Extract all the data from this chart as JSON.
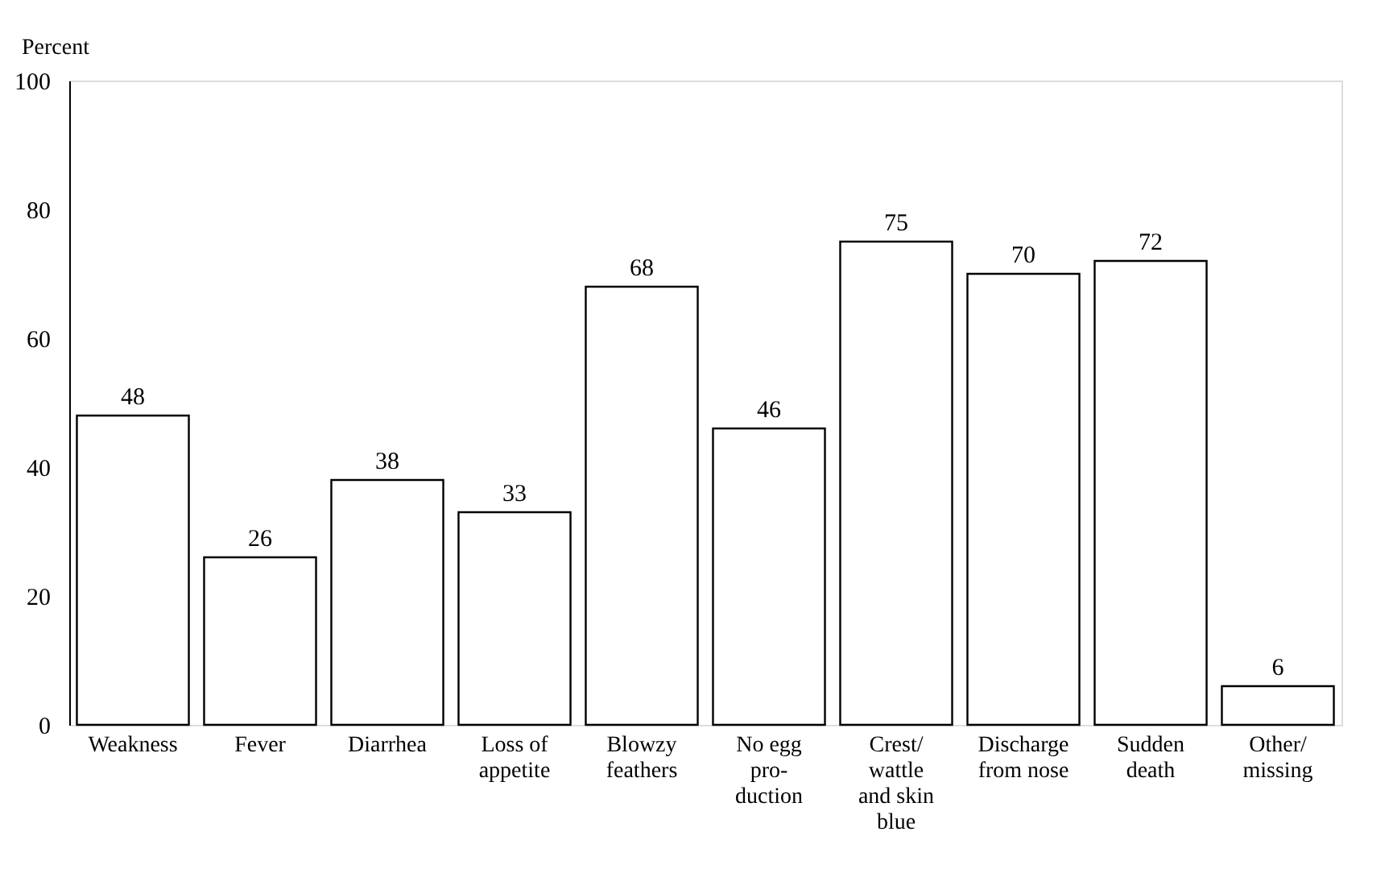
{
  "chart_data": {
    "type": "bar",
    "ylabel": "Percent",
    "categories": [
      "Weakness",
      "Fever",
      "Diarrhea",
      "Loss of\nappetite",
      "Blowzy\nfeathers",
      "No egg\npro-\nduction",
      "Crest/\nwattle\nand skin\nblue",
      "Discharge\nfrom nose",
      "Sudden\ndeath",
      "Other/\nmissing"
    ],
    "values": [
      48,
      26,
      38,
      33,
      68,
      46,
      75,
      70,
      72,
      6
    ],
    "color": "#ffffff",
    "ylim": [
      0,
      100
    ],
    "yticks": [
      0,
      20,
      40,
      60,
      80,
      100
    ],
    "grid": false,
    "data_labels": true
  }
}
